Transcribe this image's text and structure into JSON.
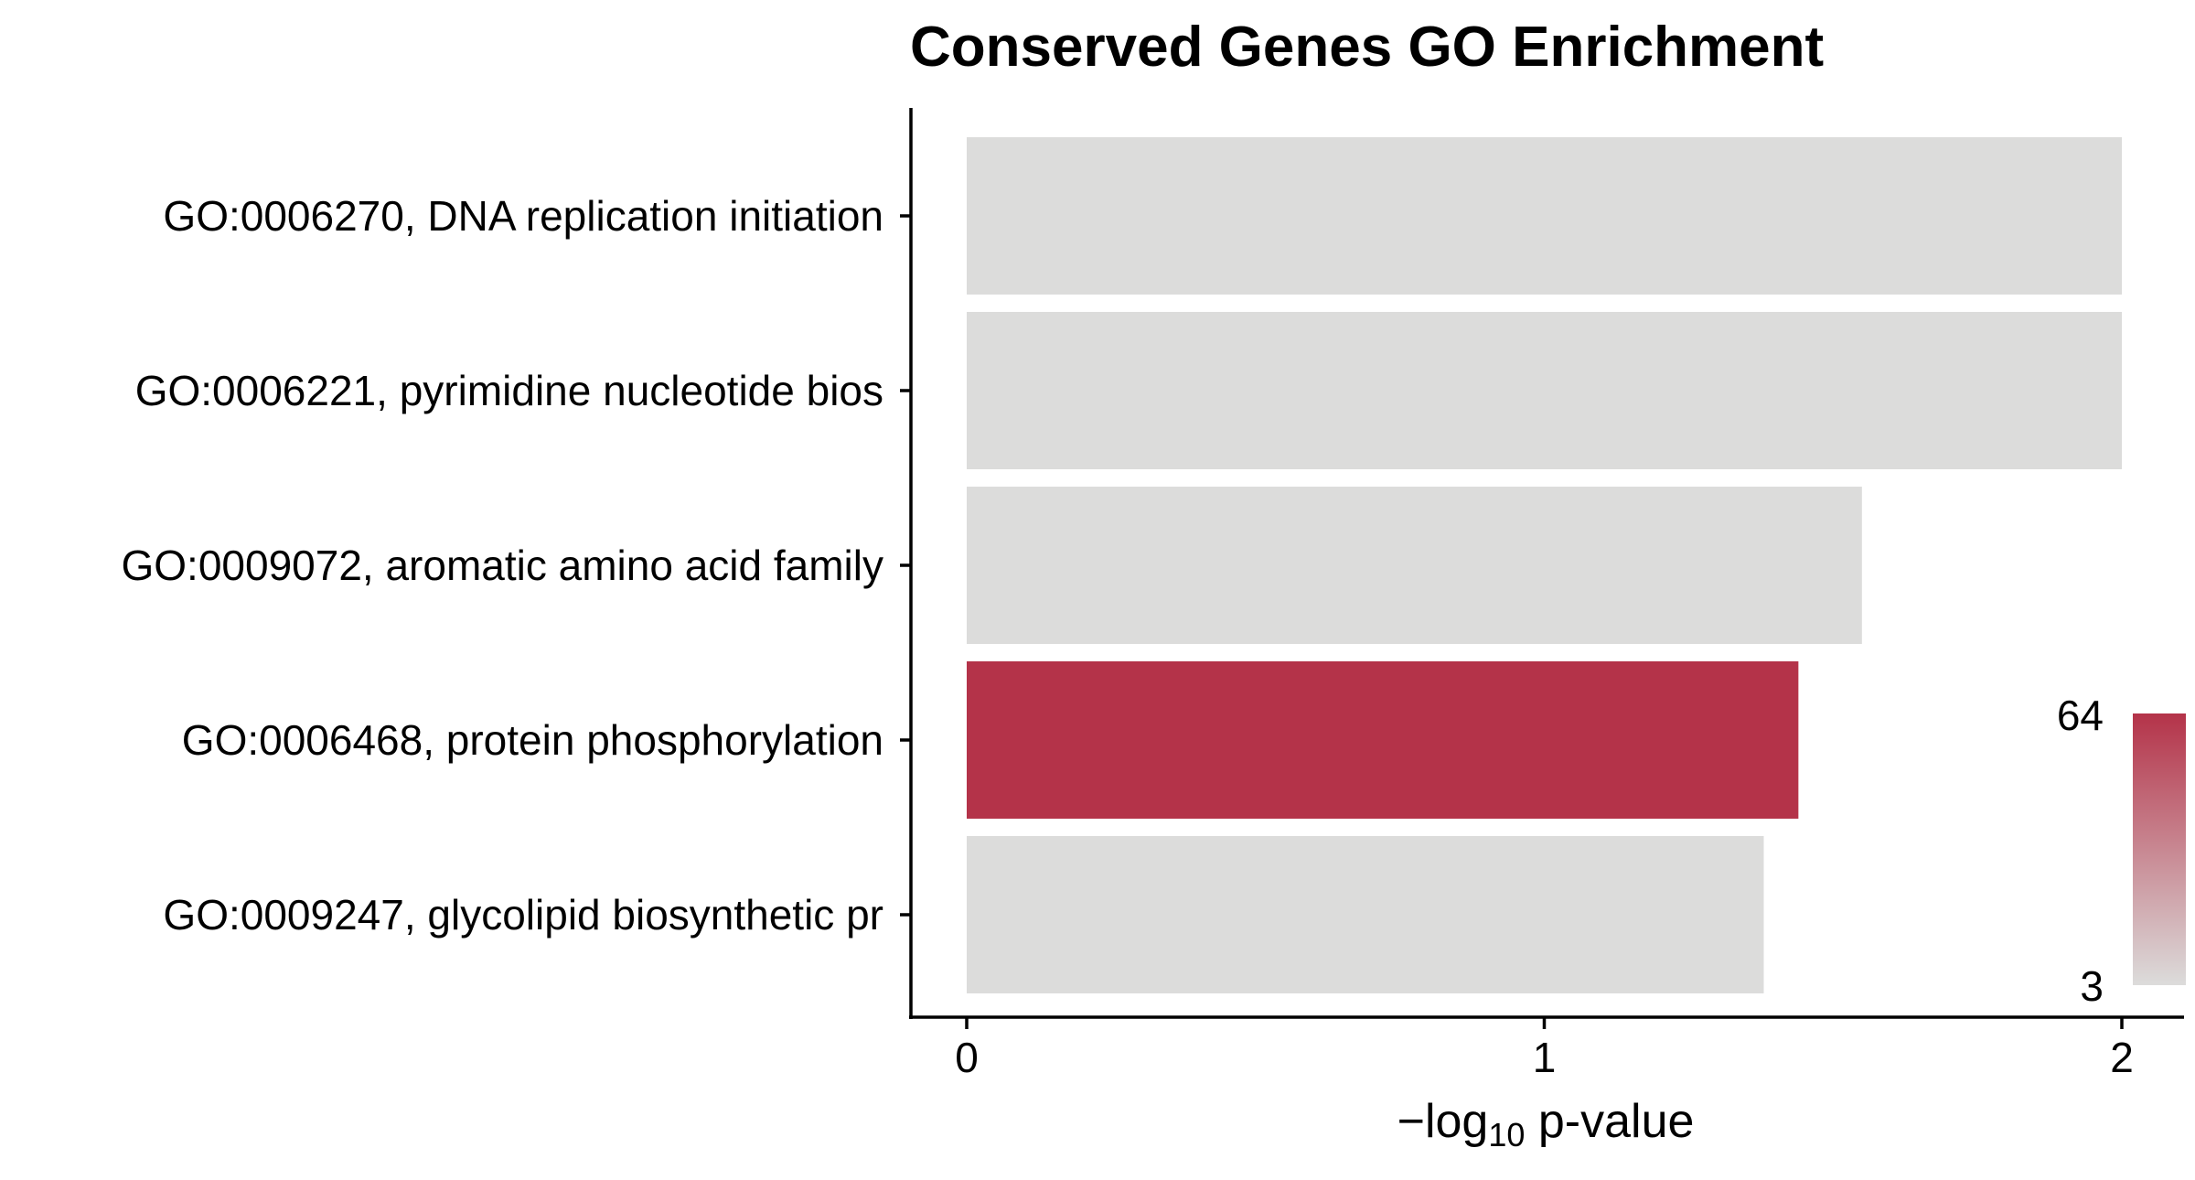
{
  "chart_data": {
    "type": "bar",
    "orientation": "horizontal",
    "title": "Conserved Genes GO Enrichment",
    "xlabel": {
      "prefix": "−log",
      "subscript": "10",
      "suffix": " p-value"
    },
    "ylabel": "",
    "xlim": [
      0,
      2
    ],
    "x_ticks": [
      "0",
      "1",
      "2"
    ],
    "categories": [
      "GO:0006270, DNA replication initiation",
      "GO:0006221, pyrimidine nucleotide bios",
      "GO:0009072, aromatic amino acid family",
      "GO:0006468, protein phosphorylation",
      "GO:0009247, glycolipid biosynthetic pr"
    ],
    "values": [
      2.0,
      2.0,
      1.55,
      1.44,
      1.38
    ],
    "color_values": [
      3,
      3,
      3,
      64,
      3
    ],
    "color_scale": {
      "min": 3,
      "max": 64,
      "low_color": "#dcdcdb",
      "high_color": "#b43349",
      "min_label": "3",
      "max_label": "64"
    },
    "grid": false,
    "legend_position": "right"
  }
}
